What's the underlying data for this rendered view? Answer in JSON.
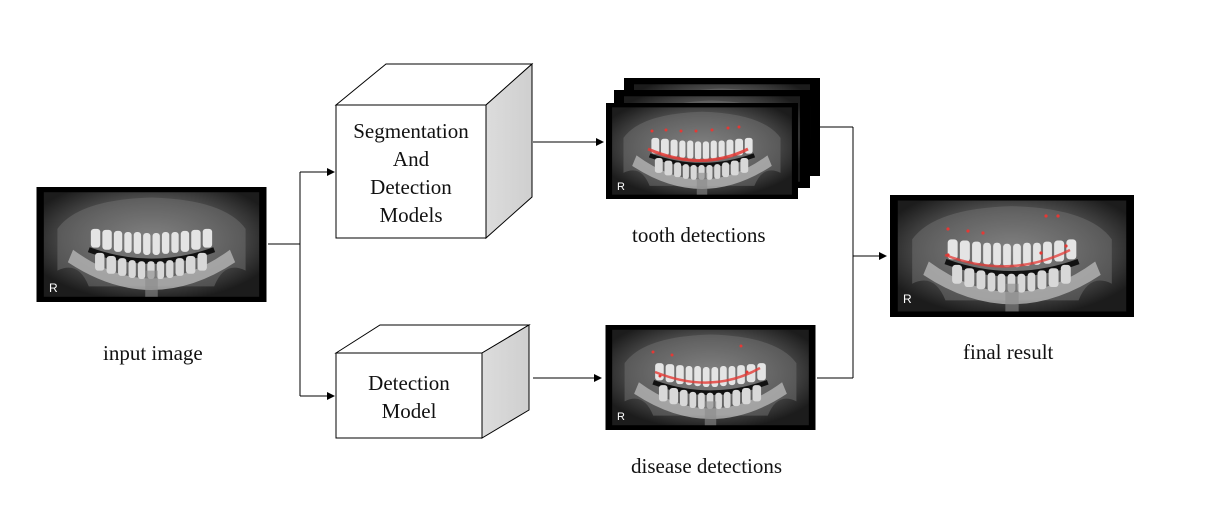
{
  "labels": {
    "input_image": "input image",
    "tooth_detections": "tooth detections",
    "disease_detections": "disease detections",
    "final_result": "final result"
  },
  "boxes": {
    "segmentation": [
      "Segmentation",
      "And",
      "Detection",
      "Models"
    ],
    "detection": [
      "Detection",
      "Model"
    ]
  },
  "xray_marker": "R",
  "colors": {
    "line": "#000000",
    "box_front": "#ffffff",
    "box_top": "#ffffff",
    "box_side": "#d9d9d9",
    "xray_frame": "#000000",
    "annotation": "#e53935"
  }
}
